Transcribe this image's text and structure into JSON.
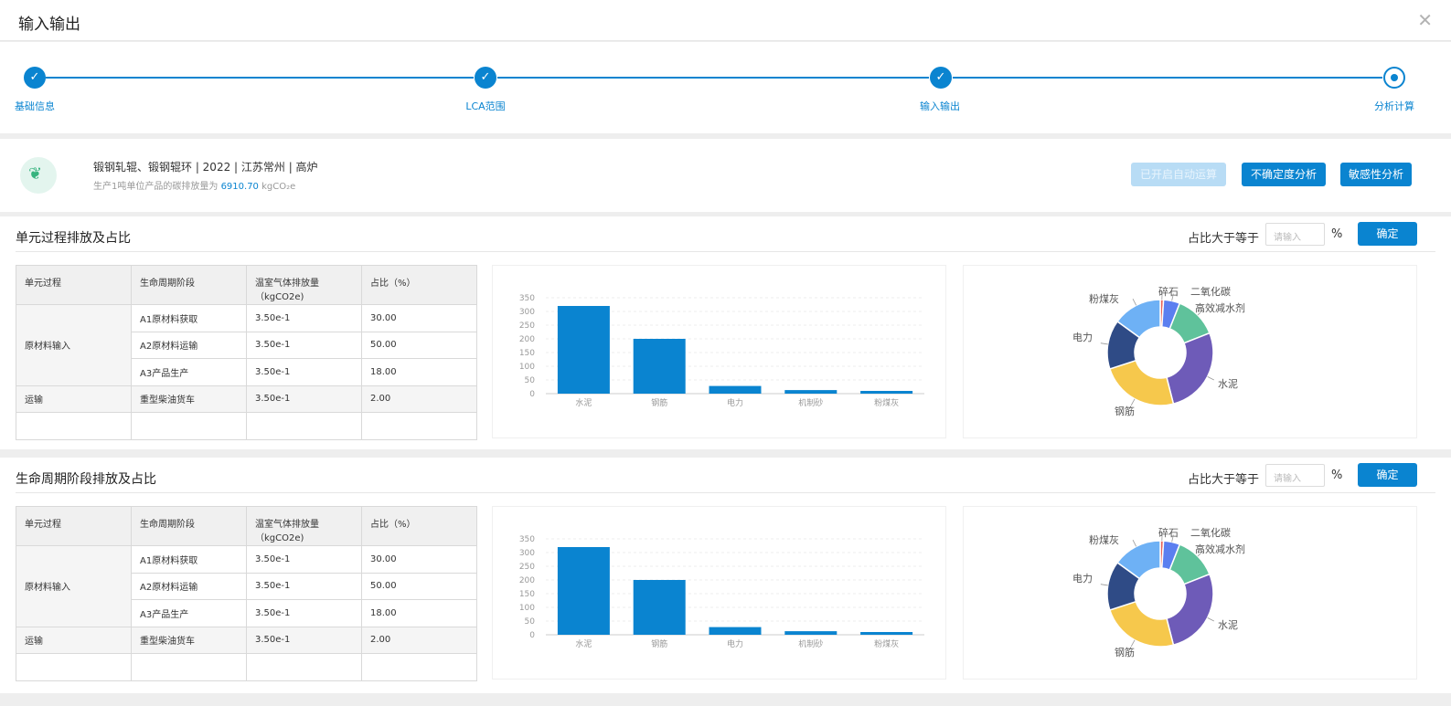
{
  "dialog": {
    "title": "输入输出",
    "close": "✕"
  },
  "steps": [
    {
      "label": "基础信息",
      "state": "done"
    },
    {
      "label": "LCA范围",
      "state": "done"
    },
    {
      "label": "输入输出",
      "state": "done"
    },
    {
      "label": "分析计算",
      "state": "current"
    }
  ],
  "info": {
    "name": "锻钢轧辊、锻钢辊环 | 2022 | 江苏常州 | 高炉",
    "sub_prefix": "生产1吨单位产品的碳排放量为",
    "sub_value": "6910.70",
    "sub_unit": "kgCO₂e",
    "btn_auto": "已开启自动运算",
    "btn_uncertainty": "不确定度分析",
    "btn_sensitivity": "敏感性分析"
  },
  "panels": [
    {
      "title": "单元过程排放及占比",
      "filter_label": "占比大于等于",
      "filter_placeholder": "请输入",
      "filter_unit": "%",
      "confirm": "确定",
      "table": {
        "headers": [
          "单元过程",
          "生命周期阶段",
          "温室气体排放量（kgCO2e)",
          "占比（%）"
        ],
        "groups": [
          {
            "name": "原材料输入",
            "rows": [
              {
                "stage": "A1原材料获取",
                "emission": "3.50e-1",
                "ratio": "30.00"
              },
              {
                "stage": "A2原材料运输",
                "emission": "3.50e-1",
                "ratio": "50.00"
              },
              {
                "stage": "A3产品生产",
                "emission": "3.50e-1",
                "ratio": "18.00"
              }
            ]
          },
          {
            "name": "运输",
            "rows": [
              {
                "stage": "重型柴油货车",
                "emission": "3.50e-1",
                "ratio": "2.00"
              }
            ]
          }
        ]
      }
    },
    {
      "title": "生命周期阶段排放及占比",
      "filter_label": "占比大于等于",
      "filter_placeholder": "请输入",
      "filter_unit": "%",
      "confirm": "确定",
      "table": {
        "headers": [
          "单元过程",
          "生命周期阶段",
          "温室气体排放量（kgCO2e)",
          "占比（%）"
        ],
        "groups": [
          {
            "name": "原材料输入",
            "rows": [
              {
                "stage": "A1原材料获取",
                "emission": "3.50e-1",
                "ratio": "30.00"
              },
              {
                "stage": "A2原材料运输",
                "emission": "3.50e-1",
                "ratio": "50.00"
              },
              {
                "stage": "A3产品生产",
                "emission": "3.50e-1",
                "ratio": "18.00"
              }
            ]
          },
          {
            "name": "运输",
            "rows": [
              {
                "stage": "重型柴油货车",
                "emission": "3.50e-1",
                "ratio": "2.00"
              }
            ]
          }
        ]
      }
    }
  ],
  "chart_data": [
    {
      "type": "bar",
      "categories": [
        "水泥",
        "钢筋",
        "电力",
        "机制砂",
        "粉煤灰"
      ],
      "values": [
        320,
        200,
        28,
        13,
        10
      ],
      "ylim": [
        0,
        350
      ],
      "yticks": [
        0,
        50,
        100,
        150,
        200,
        250,
        300,
        350
      ],
      "grid": true,
      "color": "#0a84d0"
    },
    {
      "type": "pie",
      "donut": true,
      "labels": [
        "碎石",
        "二氧化碳",
        "高效减水剂",
        "水泥",
        "钢筋",
        "电力",
        "粉煤灰"
      ],
      "values": [
        1,
        5,
        13,
        27,
        24,
        15,
        15
      ],
      "colors": [
        "#e8635a",
        "#5b7ff0",
        "#5fc29b",
        "#6e5bb8",
        "#f6c84c",
        "#2f4b86",
        "#6eb1f5"
      ]
    },
    {
      "type": "bar",
      "categories": [
        "水泥",
        "钢筋",
        "电力",
        "机制砂",
        "粉煤灰"
      ],
      "values": [
        320,
        200,
        28,
        13,
        10
      ],
      "ylim": [
        0,
        350
      ],
      "yticks": [
        0,
        50,
        100,
        150,
        200,
        250,
        300,
        350
      ],
      "grid": true,
      "color": "#0a84d0"
    },
    {
      "type": "pie",
      "donut": true,
      "labels": [
        "碎石",
        "二氧化碳",
        "高效减水剂",
        "水泥",
        "钢筋",
        "电力",
        "粉煤灰"
      ],
      "values": [
        1,
        5,
        13,
        27,
        24,
        15,
        15
      ],
      "colors": [
        "#e8635a",
        "#5b7ff0",
        "#5fc29b",
        "#6e5bb8",
        "#f6c84c",
        "#2f4b86",
        "#6eb1f5"
      ]
    }
  ]
}
